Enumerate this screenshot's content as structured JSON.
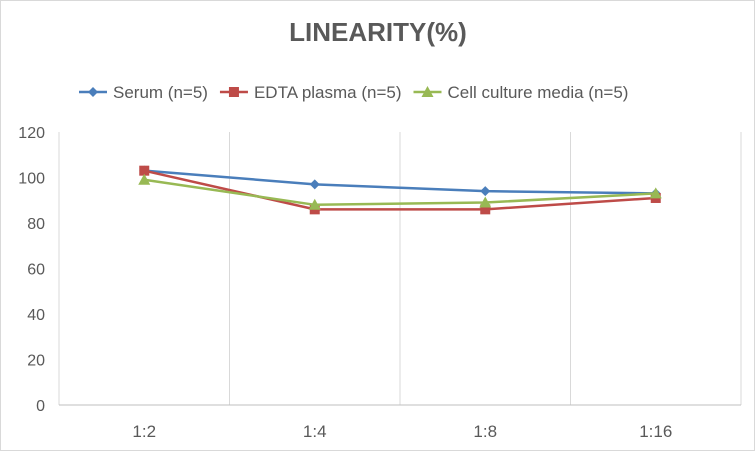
{
  "chart_data": {
    "type": "line",
    "title": "LINEARITY(%)",
    "categories": [
      "1:2",
      "1:4",
      "1:8",
      "1:16"
    ],
    "series": [
      {
        "name": "Serum (n=5)",
        "values": [
          103,
          97,
          94,
          93
        ],
        "color": "#4a7ebb",
        "marker": "diamond"
      },
      {
        "name": "EDTA plasma (n=5)",
        "values": [
          103,
          86,
          86,
          91
        ],
        "color": "#be4b48",
        "marker": "square"
      },
      {
        "name": "Cell culture media (n=5)",
        "values": [
          99,
          88,
          89,
          93
        ],
        "color": "#98b954",
        "marker": "triangle"
      }
    ],
    "ylim": [
      0,
      120
    ],
    "yticks": [
      0,
      20,
      40,
      60,
      80,
      100,
      120
    ],
    "grid": "vertical",
    "legend": "top"
  }
}
